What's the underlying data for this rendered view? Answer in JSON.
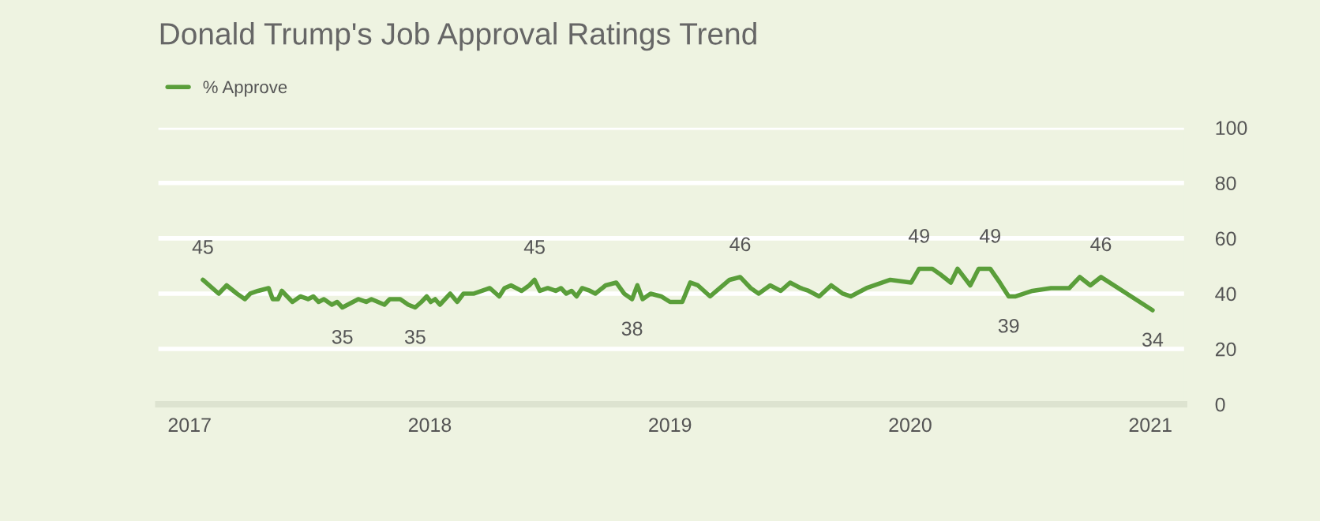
{
  "chart_data": {
    "type": "line",
    "title": "Donald Trump's Job Approval Ratings Trend",
    "x": [
      2017.055,
      2017.121,
      2017.154,
      2017.197,
      2017.23,
      2017.252,
      2017.285,
      2017.329,
      2017.346,
      2017.368,
      2017.384,
      2017.428,
      2017.461,
      2017.493,
      2017.515,
      2017.537,
      2017.559,
      2017.592,
      2017.614,
      2017.636,
      2017.702,
      2017.735,
      2017.757,
      2017.811,
      2017.833,
      2017.877,
      2017.91,
      2017.939,
      2017.965,
      2017.987,
      2018.004,
      2018.022,
      2018.042,
      2018.085,
      2018.114,
      2018.14,
      2018.184,
      2018.217,
      2018.25,
      2018.289,
      2018.311,
      2018.338,
      2018.382,
      2018.414,
      2018.436,
      2018.458,
      2018.491,
      2018.524,
      2018.546,
      2018.568,
      2018.59,
      2018.611,
      2018.634,
      2018.667,
      2018.689,
      2018.732,
      2018.776,
      2018.809,
      2018.842,
      2018.864,
      2018.886,
      2018.919,
      2018.963,
      2019.0,
      2019.051,
      2019.084,
      2019.116,
      2019.167,
      2019.248,
      2019.292,
      2019.336,
      2019.369,
      2019.417,
      2019.461,
      2019.5,
      2019.544,
      2019.577,
      2019.621,
      2019.671,
      2019.719,
      2019.752,
      2019.818,
      2019.917,
      2020.004,
      2020.037,
      2020.092,
      2020.125,
      2020.169,
      2020.197,
      2020.25,
      2020.285,
      2020.333,
      2020.373,
      2020.41,
      2020.439,
      2020.509,
      2020.586,
      2020.662,
      2020.706,
      2020.75,
      2020.794,
      2021.009
    ],
    "series": [
      {
        "name": "% Approve",
        "color": "#5a9e3a",
        "values": [
          45,
          40,
          43,
          40,
          38,
          40,
          41,
          42,
          38,
          38,
          41,
          37,
          39,
          38,
          39,
          37,
          38,
          36,
          37,
          35,
          38,
          37,
          38,
          36,
          38,
          38,
          36,
          35,
          37,
          39,
          37,
          38,
          36,
          40,
          37,
          40,
          40,
          41,
          42,
          39,
          42,
          43,
          41,
          43,
          45,
          41,
          42,
          41,
          42,
          40,
          41,
          39,
          42,
          41,
          40,
          43,
          44,
          40,
          38,
          43,
          38,
          40,
          39,
          37,
          37,
          44,
          43,
          39,
          45,
          46,
          42,
          40,
          43,
          41,
          44,
          42,
          41,
          39,
          43,
          40,
          39,
          42,
          45,
          44,
          49,
          49,
          47,
          44,
          49,
          43,
          49,
          49,
          44,
          39,
          39,
          41,
          42,
          42,
          46,
          43,
          46,
          34
        ],
        "value_labels": [
          "45",
          null,
          null,
          null,
          null,
          null,
          null,
          null,
          null,
          null,
          null,
          null,
          null,
          null,
          null,
          null,
          null,
          null,
          null,
          "35",
          null,
          null,
          null,
          null,
          null,
          null,
          null,
          "35",
          null,
          null,
          null,
          null,
          null,
          null,
          null,
          null,
          null,
          null,
          null,
          null,
          null,
          null,
          null,
          null,
          "45",
          null,
          null,
          null,
          null,
          null,
          null,
          null,
          null,
          null,
          null,
          null,
          null,
          null,
          "38",
          null,
          null,
          null,
          null,
          null,
          null,
          null,
          null,
          null,
          null,
          "46",
          null,
          null,
          null,
          null,
          null,
          null,
          null,
          null,
          null,
          null,
          null,
          null,
          null,
          null,
          "49",
          null,
          null,
          null,
          null,
          null,
          null,
          "49",
          null,
          "39",
          null,
          null,
          null,
          null,
          null,
          null,
          "46",
          "34"
        ]
      }
    ],
    "xlim": [
      2016.87,
      2021.14
    ],
    "xticks": [
      2017,
      2018,
      2019,
      2020,
      2021
    ],
    "ylim": [
      0,
      100
    ],
    "yticks": [
      0,
      20,
      40,
      60,
      80,
      100
    ],
    "grid": "y",
    "legend": "top left",
    "marker": "none",
    "line_style": "solid"
  }
}
